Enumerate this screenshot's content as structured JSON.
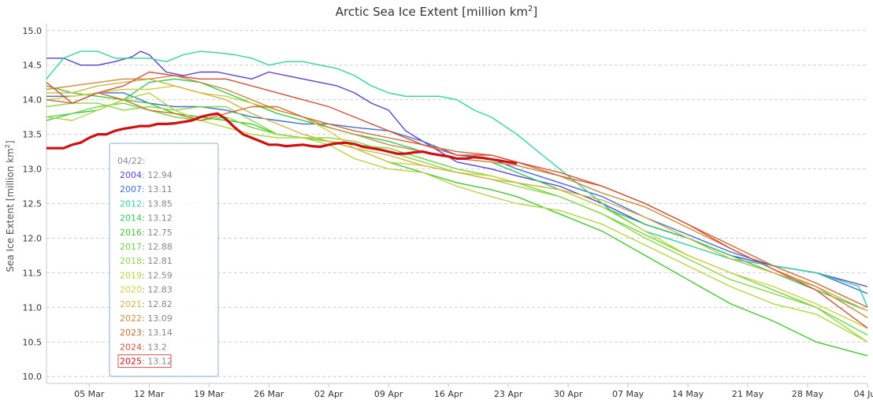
{
  "chart_data": {
    "type": "line",
    "title": "Arctic Sea Ice Extent [million km",
    "title_sup": "2",
    "title_end": "]",
    "ylabel": "Sea Ice Extent [million km",
    "ylabel_sup": "2",
    "ylabel_end": "]",
    "ylim": [
      9.9,
      15.1
    ],
    "xlim": [
      0,
      96
    ],
    "grid": true,
    "y_ticks": [
      "15.0",
      "14.5",
      "14.0",
      "13.5",
      "13.0",
      "12.5",
      "12.0",
      "11.5",
      "11.0",
      "10.5",
      "10.0"
    ],
    "x_ticks": [
      {
        "day": 5,
        "label": "05 Mar"
      },
      {
        "day": 12,
        "label": "12 Mar"
      },
      {
        "day": 19,
        "label": "19 Mar"
      },
      {
        "day": 26,
        "label": "26 Mar"
      },
      {
        "day": 33,
        "label": "02 Apr"
      },
      {
        "day": 40,
        "label": "09 Apr"
      },
      {
        "day": 47,
        "label": "16 Apr"
      },
      {
        "day": 54,
        "label": "23 Apr"
      },
      {
        "day": 61,
        "label": "30 Apr"
      },
      {
        "day": 68,
        "label": "07 May"
      },
      {
        "day": 75,
        "label": "14 May"
      },
      {
        "day": 82,
        "label": "21 May"
      },
      {
        "day": 89,
        "label": "28 May"
      },
      {
        "day": 96,
        "label": "04 Jun"
      }
    ],
    "tooltip": {
      "date": "04/22:",
      "entries": [
        {
          "year": "2004",
          "value": "12.94",
          "color": "#5b3fd6"
        },
        {
          "year": "2007",
          "value": "13.11",
          "color": "#3f6fd6"
        },
        {
          "year": "2012",
          "value": "13.85",
          "color": "#2fd69a"
        },
        {
          "year": "2014",
          "value": "13.12",
          "color": "#2fc95a"
        },
        {
          "year": "2016",
          "value": "12.75",
          "color": "#3fc92f"
        },
        {
          "year": "2017",
          "value": "12.88",
          "color": "#6fd63f"
        },
        {
          "year": "2018",
          "value": "12.81",
          "color": "#8fd64a"
        },
        {
          "year": "2019",
          "value": "12.59",
          "color": "#b6d640"
        },
        {
          "year": "2020",
          "value": "12.83",
          "color": "#cfd040"
        },
        {
          "year": "2021",
          "value": "12.82",
          "color": "#d2b444"
        },
        {
          "year": "2022",
          "value": "13.09",
          "color": "#d28a3c"
        },
        {
          "year": "2023",
          "value": "13.14",
          "color": "#cf6a36"
        },
        {
          "year": "2024",
          "value": "13.2",
          "color": "#d2503a"
        },
        {
          "year": "2025",
          "value": "13.12",
          "color": "#d01010"
        }
      ]
    },
    "series": [
      {
        "name": "2004",
        "color": "#5b3fd6",
        "x": [
          0,
          2,
          4,
          6,
          8,
          10,
          11,
          12,
          14,
          16,
          18,
          20,
          22,
          24,
          26,
          28,
          30,
          32,
          34,
          36,
          38,
          40,
          42,
          44,
          48,
          52,
          55,
          60,
          65,
          70,
          75,
          80,
          85,
          90,
          96
        ],
        "values": [
          14.6,
          14.6,
          14.5,
          14.5,
          14.55,
          14.62,
          14.7,
          14.65,
          14.4,
          14.35,
          14.4,
          14.4,
          14.35,
          14.3,
          14.4,
          14.35,
          14.3,
          14.25,
          14.2,
          14.1,
          13.95,
          13.85,
          13.55,
          13.4,
          13.1,
          13.0,
          12.9,
          12.75,
          12.5,
          12.2,
          12.0,
          11.75,
          11.6,
          11.5,
          11.3
        ]
      },
      {
        "name": "2007",
        "color": "#3f6fd6",
        "x": [
          0,
          3,
          6,
          9,
          12,
          15,
          18,
          21,
          24,
          27,
          30,
          33,
          36,
          40,
          44,
          48,
          52,
          55,
          60,
          65,
          70,
          75,
          80,
          85,
          90,
          96
        ],
        "values": [
          14.05,
          14.05,
          14.1,
          14.1,
          13.95,
          13.9,
          13.9,
          13.85,
          13.75,
          13.7,
          13.65,
          13.65,
          13.6,
          13.55,
          13.4,
          13.2,
          13.15,
          13.0,
          12.8,
          12.6,
          12.3,
          12.05,
          11.8,
          11.6,
          11.5,
          11.2
        ]
      },
      {
        "name": "2012",
        "color": "#2fd69a",
        "x": [
          0,
          2,
          4,
          6,
          8,
          10,
          12,
          14,
          16,
          18,
          20,
          22,
          24,
          26,
          28,
          30,
          32,
          34,
          36,
          38,
          40,
          42,
          44,
          46,
          48,
          50,
          52,
          55,
          58,
          62,
          66,
          70,
          75,
          80,
          85,
          90,
          95,
          96
        ],
        "values": [
          14.3,
          14.6,
          14.7,
          14.7,
          14.6,
          14.6,
          14.6,
          14.55,
          14.65,
          14.7,
          14.68,
          14.65,
          14.6,
          14.5,
          14.55,
          14.55,
          14.5,
          14.45,
          14.35,
          14.2,
          14.1,
          14.05,
          14.05,
          14.05,
          14.0,
          13.85,
          13.75,
          13.5,
          13.2,
          12.8,
          12.4,
          12.1,
          11.9,
          11.7,
          11.6,
          11.5,
          11.3,
          11.0
        ]
      },
      {
        "name": "2014",
        "color": "#2fc95a",
        "x": [
          0,
          3,
          6,
          9,
          12,
          15,
          18,
          21,
          24,
          27,
          30,
          33,
          36,
          40,
          44,
          48,
          52,
          55,
          60,
          65,
          70,
          75,
          80,
          85,
          90,
          96
        ],
        "values": [
          13.7,
          13.8,
          13.85,
          14.0,
          14.25,
          14.3,
          14.25,
          14.1,
          13.95,
          13.8,
          13.7,
          13.6,
          13.5,
          13.4,
          13.25,
          13.15,
          13.1,
          12.95,
          12.7,
          12.45,
          12.2,
          12.0,
          11.75,
          11.5,
          11.25,
          10.95
        ]
      },
      {
        "name": "2016",
        "color": "#3fc92f",
        "x": [
          0,
          3,
          6,
          9,
          12,
          15,
          18,
          21,
          24,
          27,
          30,
          33,
          36,
          40,
          44,
          48,
          52,
          55,
          60,
          65,
          70,
          75,
          80,
          85,
          90,
          96
        ],
        "values": [
          14.2,
          14.1,
          14.05,
          14.0,
          13.95,
          13.8,
          13.75,
          13.7,
          13.65,
          13.5,
          13.45,
          13.4,
          13.3,
          13.1,
          12.95,
          12.8,
          12.7,
          12.6,
          12.35,
          12.1,
          11.75,
          11.4,
          11.05,
          10.8,
          10.5,
          10.3
        ]
      },
      {
        "name": "2017",
        "color": "#6fd63f",
        "x": [
          0,
          3,
          6,
          9,
          12,
          15,
          18,
          21,
          24,
          27,
          30,
          33,
          36,
          40,
          44,
          48,
          52,
          55,
          60,
          65,
          70,
          75,
          80,
          85,
          90,
          96
        ],
        "values": [
          13.75,
          13.8,
          13.9,
          13.95,
          13.85,
          13.75,
          13.7,
          13.75,
          13.6,
          13.5,
          13.45,
          13.4,
          13.35,
          13.3,
          13.15,
          13.0,
          12.9,
          12.8,
          12.6,
          12.35,
          12.05,
          11.75,
          11.5,
          11.25,
          11.0,
          10.6
        ]
      },
      {
        "name": "2018",
        "color": "#8fd64a",
        "x": [
          0,
          3,
          6,
          9,
          12,
          15,
          18,
          21,
          24,
          27,
          30,
          33,
          36,
          40,
          44,
          48,
          52,
          55,
          60,
          65,
          70,
          75,
          80,
          85,
          90,
          96
        ],
        "values": [
          13.9,
          13.95,
          13.95,
          13.85,
          13.9,
          13.85,
          13.9,
          13.9,
          13.7,
          13.5,
          13.45,
          13.45,
          13.4,
          13.25,
          13.1,
          12.95,
          12.85,
          12.75,
          12.6,
          12.35,
          12.0,
          11.7,
          11.4,
          11.2,
          11.0,
          10.5
        ]
      },
      {
        "name": "2019",
        "color": "#b6d640",
        "x": [
          0,
          3,
          6,
          9,
          12,
          15,
          18,
          21,
          24,
          27,
          30,
          33,
          36,
          40,
          44,
          48,
          52,
          55,
          60,
          65,
          70,
          75,
          80,
          85,
          90,
          96
        ],
        "values": [
          13.75,
          13.7,
          13.85,
          14.0,
          14.1,
          13.85,
          13.7,
          13.6,
          13.5,
          13.45,
          13.45,
          13.35,
          13.15,
          13.0,
          12.95,
          12.75,
          12.6,
          12.5,
          12.4,
          12.2,
          11.9,
          11.6,
          11.3,
          11.05,
          10.9,
          10.5
        ]
      },
      {
        "name": "2020",
        "color": "#cfd040",
        "x": [
          0,
          3,
          6,
          9,
          12,
          15,
          18,
          21,
          24,
          27,
          30,
          33,
          36,
          40,
          44,
          48,
          52,
          55,
          60,
          65,
          70,
          75,
          80,
          85,
          90,
          96
        ],
        "values": [
          14.0,
          14.05,
          14.1,
          14.15,
          14.15,
          14.2,
          14.1,
          14.05,
          13.95,
          13.85,
          13.75,
          13.55,
          13.3,
          13.1,
          13.05,
          12.95,
          12.9,
          12.8,
          12.7,
          12.45,
          12.1,
          11.75,
          11.5,
          11.3,
          11.05,
          10.7
        ]
      },
      {
        "name": "2021",
        "color": "#d2b444",
        "x": [
          0,
          3,
          6,
          9,
          12,
          15,
          18,
          21,
          24,
          27,
          30,
          33,
          36,
          40,
          44,
          48,
          52,
          55,
          60,
          65,
          70,
          75,
          80,
          85,
          90,
          96
        ],
        "values": [
          14.1,
          14.1,
          14.2,
          14.25,
          14.3,
          14.2,
          14.1,
          14.0,
          13.8,
          13.65,
          13.5,
          13.4,
          13.3,
          13.2,
          13.05,
          12.95,
          12.85,
          12.8,
          12.7,
          12.55,
          12.3,
          12.0,
          11.7,
          11.5,
          11.3,
          10.95
        ]
      },
      {
        "name": "2022",
        "color": "#d28a3c",
        "x": [
          0,
          3,
          6,
          9,
          12,
          15,
          18,
          21,
          24,
          27,
          30,
          33,
          36,
          40,
          44,
          48,
          52,
          55,
          60,
          65,
          70,
          75,
          80,
          85,
          90,
          96
        ],
        "values": [
          14.15,
          14.2,
          14.25,
          14.3,
          14.3,
          14.35,
          14.25,
          14.15,
          14.0,
          13.85,
          13.75,
          13.6,
          13.5,
          13.35,
          13.25,
          13.15,
          13.1,
          13.05,
          12.9,
          12.65,
          12.45,
          12.15,
          11.85,
          11.55,
          11.3,
          10.85
        ]
      },
      {
        "name": "2023",
        "color": "#cf6a36",
        "x": [
          0,
          3,
          6,
          9,
          12,
          15,
          18,
          21,
          24,
          27,
          30,
          33,
          36,
          40,
          44,
          48,
          52,
          55,
          60,
          65,
          70,
          75,
          80,
          85,
          90,
          96
        ],
        "values": [
          14.0,
          13.95,
          14.1,
          14.0,
          13.85,
          13.8,
          13.7,
          13.8,
          13.9,
          13.9,
          13.75,
          13.65,
          13.55,
          13.45,
          13.35,
          13.25,
          13.2,
          13.1,
          12.9,
          12.75,
          12.5,
          12.2,
          11.9,
          11.6,
          11.35,
          11.0
        ]
      },
      {
        "name": "2024",
        "color": "#d2503a",
        "x": [
          0,
          3,
          6,
          9,
          12,
          15,
          18,
          21,
          24,
          27,
          30,
          33,
          36,
          40,
          44,
          48,
          52,
          55,
          60,
          65,
          70,
          75,
          80,
          85,
          90,
          96
        ],
        "values": [
          14.25,
          13.95,
          14.1,
          14.2,
          14.4,
          14.35,
          14.3,
          14.3,
          14.2,
          14.1,
          14.0,
          13.9,
          13.75,
          13.55,
          13.35,
          13.2,
          13.2,
          13.1,
          12.95,
          12.75,
          12.5,
          12.2,
          11.85,
          11.55,
          11.25,
          10.7
        ]
      },
      {
        "name": "2025",
        "color": "#d01010",
        "x": [
          0,
          1,
          2,
          3,
          4,
          5,
          6,
          7,
          8,
          9,
          10,
          11,
          12,
          13,
          14,
          15,
          16,
          17,
          18,
          19,
          20,
          21,
          22,
          23,
          24,
          25,
          26,
          27,
          28,
          29,
          30,
          31,
          32,
          33,
          34,
          35,
          36,
          37,
          38,
          39,
          40,
          41,
          42,
          43,
          44,
          45,
          46,
          47,
          48,
          49,
          50,
          51,
          52,
          53,
          54,
          55
        ],
        "values": [
          13.3,
          13.3,
          13.3,
          13.35,
          13.38,
          13.45,
          13.5,
          13.5,
          13.55,
          13.58,
          13.6,
          13.62,
          13.62,
          13.65,
          13.65,
          13.66,
          13.68,
          13.7,
          13.75,
          13.78,
          13.8,
          13.72,
          13.6,
          13.5,
          13.45,
          13.4,
          13.35,
          13.35,
          13.33,
          13.34,
          13.35,
          13.33,
          13.32,
          13.35,
          13.37,
          13.38,
          13.36,
          13.32,
          13.3,
          13.28,
          13.25,
          13.22,
          13.22,
          13.24,
          13.25,
          13.22,
          13.2,
          13.18,
          13.15,
          13.15,
          13.17,
          13.16,
          13.14,
          13.12,
          13.1,
          13.08
        ]
      }
    ]
  }
}
